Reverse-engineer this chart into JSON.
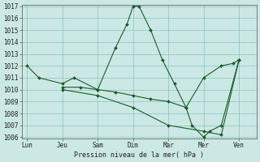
{
  "xlabel": "Pression niveau de la mer( hPa )",
  "background_color": "#cce8e4",
  "grid_color": "#88c4bc",
  "line_color": "#1a5c2a",
  "ylim": [
    1006,
    1017
  ],
  "yticks": [
    1006,
    1007,
    1008,
    1009,
    1010,
    1011,
    1012,
    1013,
    1014,
    1015,
    1016,
    1017
  ],
  "x_labels": [
    "Lun",
    "Jeu",
    "Sam",
    "Dim",
    "Mar",
    "Mer",
    "Ven"
  ],
  "x_positions": [
    0,
    1,
    2,
    3,
    4,
    5,
    6
  ],
  "line1_x": [
    0,
    0.33,
    1,
    1.33,
    2,
    2.5,
    2.83,
    3.0,
    3.17,
    3.5,
    3.83,
    4.17,
    4.5,
    4.67,
    5.0,
    5.17,
    5.5,
    6.0
  ],
  "line1_y": [
    1012,
    1011,
    1010.5,
    1011,
    1010,
    1013.5,
    1015.5,
    1017.0,
    1017.0,
    1015.0,
    1012.5,
    1010.5,
    1008.5,
    1007.0,
    1006.0,
    1006.5,
    1007.0,
    1012.5
  ],
  "line2_x": [
    1,
    1.5,
    2,
    2.5,
    3,
    3.5,
    4.0,
    4.5,
    5.0,
    5.5,
    5.83,
    6.0
  ],
  "line2_y": [
    1010.2,
    1010.2,
    1010.0,
    1009.8,
    1009.5,
    1009.2,
    1009.0,
    1008.5,
    1011.0,
    1012.0,
    1012.2,
    1012.5
  ],
  "line3_x": [
    1,
    2,
    3,
    4,
    5,
    5.5,
    6
  ],
  "line3_y": [
    1010.0,
    1009.5,
    1008.5,
    1007.0,
    1006.5,
    1006.2,
    1012.5
  ],
  "fontsize": 5.5
}
